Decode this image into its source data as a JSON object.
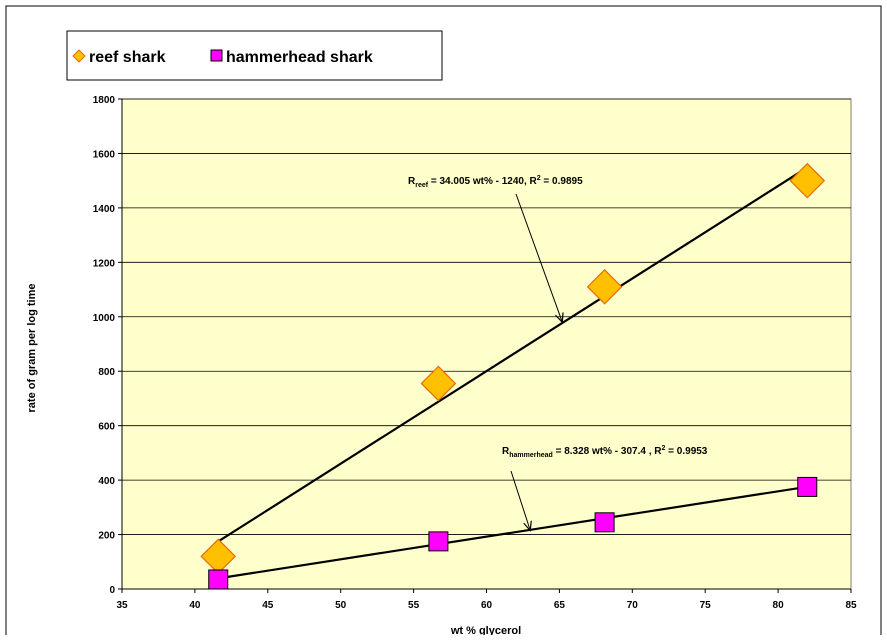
{
  "chart_data": {
    "type": "scatter",
    "xlabel": "wt % glycerol",
    "ylabel": "rate of gram per log time",
    "xlim": [
      35,
      85
    ],
    "ylim": [
      0,
      1800
    ],
    "x_ticks": [
      35,
      40,
      45,
      50,
      55,
      60,
      65,
      70,
      75,
      80,
      85
    ],
    "y_ticks": [
      0,
      200,
      400,
      600,
      800,
      1000,
      1200,
      1400,
      1600,
      1800
    ],
    "grid": "horizontal",
    "legend_position": "top-left",
    "series": [
      {
        "name": "reef shark",
        "marker": "diamond",
        "color": "#FFC000",
        "edge_color": "#E46C0A",
        "points": [
          {
            "x": 41.6,
            "y": 120
          },
          {
            "x": 56.7,
            "y": 755
          },
          {
            "x": 68.1,
            "y": 1110
          },
          {
            "x": 82.0,
            "y": 1500
          }
        ],
        "fit": {
          "slope": 34.005,
          "intercept": -1240,
          "x_range": [
            41.6,
            82.0
          ]
        }
      },
      {
        "name": "hammerhead shark",
        "marker": "square",
        "color": "#FF00FF",
        "edge_color": "#000000",
        "points": [
          {
            "x": 41.6,
            "y": 35
          },
          {
            "x": 56.7,
            "y": 175
          },
          {
            "x": 68.1,
            "y": 245
          },
          {
            "x": 82.0,
            "y": 375
          }
        ],
        "fit": {
          "slope": 8.328,
          "intercept": -307.4,
          "x_range": [
            41.6,
            82.0
          ]
        }
      }
    ],
    "annotations": [
      {
        "id": "reef",
        "prefix": "R",
        "subscript": "reef",
        "body": " = 34.005 wt% - 1240,   R",
        "sup": "2",
        "tail": " = 0.9895",
        "arrow_to": {
          "x": 65.2,
          "y": 980
        }
      },
      {
        "id": "hammer",
        "prefix": "R",
        "subscript": "hammerhead",
        "body": " = 8.328 wt% - 307.4 , R",
        "sup": "2",
        "tail": " = 0.9953",
        "arrow_to": {
          "x": 63.0,
          "y": 215
        }
      }
    ],
    "plot_background": "#FFFFCC"
  }
}
